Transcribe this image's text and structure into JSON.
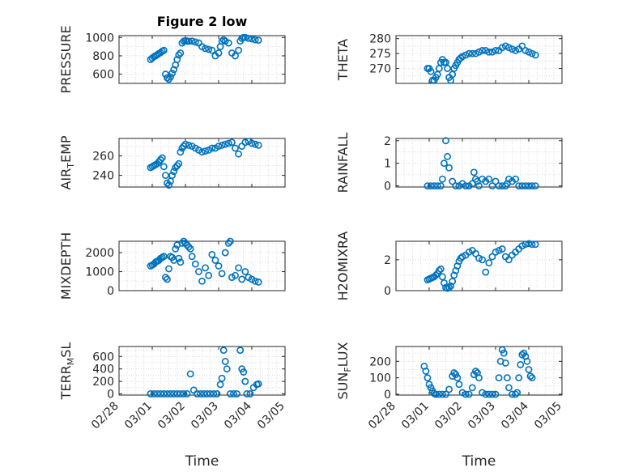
{
  "figure": {
    "title": "Figure 2 low",
    "xlabel": "Time",
    "marker_color": "#0072BD",
    "marker": "circle-open"
  },
  "chart_data": [
    {
      "type": "scatter",
      "title": "Figure 2 low",
      "ylabel": "PRESSURE",
      "ylim": [
        500,
        1020
      ],
      "yticks": [
        600,
        800,
        1000
      ],
      "xlim": [
        "02/28",
        "03/05"
      ],
      "xticks": [
        "02/28",
        "03/01",
        "03/02",
        "03/03",
        "03/04",
        "03/05"
      ],
      "show_xticklabels": false,
      "grid": true,
      "x": [
        0.95,
        1.0,
        1.05,
        1.1,
        1.15,
        1.2,
        1.25,
        1.3,
        1.35,
        1.4,
        1.45,
        1.5,
        1.55,
        1.6,
        1.65,
        1.7,
        1.75,
        1.8,
        1.85,
        1.9,
        1.95,
        2.0,
        2.05,
        2.1,
        2.2,
        2.3,
        2.4,
        2.5,
        2.6,
        2.7,
        2.8,
        2.9,
        3.0,
        3.05,
        3.1,
        3.15,
        3.2,
        3.3,
        3.4,
        3.5,
        3.6,
        3.65,
        3.7,
        3.75,
        3.8,
        3.9,
        4.0,
        4.1,
        4.2
      ],
      "y": [
        760,
        775,
        790,
        800,
        812,
        825,
        835,
        850,
        860,
        600,
        560,
        545,
        570,
        610,
        650,
        700,
        760,
        810,
        830,
        940,
        960,
        965,
        960,
        958,
        960,
        950,
        940,
        900,
        880,
        870,
        860,
        800,
        830,
        900,
        960,
        975,
        960,
        940,
        830,
        800,
        860,
        960,
        990,
        1000,
        1000,
        990,
        985,
        975,
        970
      ]
    },
    {
      "type": "scatter",
      "title": "",
      "ylabel": "THETA",
      "ylim": [
        265,
        281
      ],
      "yticks": [
        270,
        275,
        280
      ],
      "xlim": [
        "02/28",
        "03/05"
      ],
      "xticks": [
        "02/28",
        "03/01",
        "03/02",
        "03/03",
        "03/04",
        "03/05"
      ],
      "show_xticklabels": false,
      "grid": true,
      "x": [
        0.95,
        1.0,
        1.05,
        1.1,
        1.15,
        1.2,
        1.25,
        1.3,
        1.35,
        1.4,
        1.45,
        1.5,
        1.55,
        1.6,
        1.65,
        1.7,
        1.75,
        1.8,
        1.85,
        1.9,
        1.95,
        2.0,
        2.1,
        2.2,
        2.3,
        2.4,
        2.5,
        2.6,
        2.7,
        2.8,
        2.9,
        3.0,
        3.1,
        3.2,
        3.3,
        3.4,
        3.5,
        3.6,
        3.7,
        3.8,
        3.9,
        4.0,
        4.1,
        4.2
      ],
      "y": [
        270,
        270,
        269,
        266,
        266,
        267,
        268,
        270,
        272,
        273,
        272,
        272,
        270,
        267,
        266,
        268,
        270,
        271,
        272,
        273,
        273.5,
        274,
        274.5,
        275,
        275,
        275,
        275.5,
        276,
        276,
        275.5,
        275.5,
        276,
        276,
        277,
        277.5,
        277,
        276.5,
        276,
        276.5,
        277.5,
        276,
        275.5,
        275,
        274.5
      ]
    },
    {
      "type": "scatter",
      "title": "",
      "ylabel": "AIR_TEMP",
      "ylim": [
        228,
        278
      ],
      "yticks": [
        240,
        260
      ],
      "xlim": [
        "02/28",
        "03/05"
      ],
      "xticks": [
        "02/28",
        "03/01",
        "03/02",
        "03/03",
        "03/04",
        "03/05"
      ],
      "show_xticklabels": false,
      "grid": true,
      "x": [
        0.95,
        1.0,
        1.05,
        1.1,
        1.15,
        1.2,
        1.25,
        1.3,
        1.35,
        1.4,
        1.45,
        1.5,
        1.55,
        1.6,
        1.65,
        1.7,
        1.75,
        1.8,
        1.85,
        1.9,
        1.95,
        2.0,
        2.1,
        2.2,
        2.3,
        2.4,
        2.5,
        2.6,
        2.7,
        2.8,
        2.9,
        3.0,
        3.1,
        3.2,
        3.3,
        3.4,
        3.5,
        3.6,
        3.7,
        3.8,
        3.9,
        4.0,
        4.1,
        4.2
      ],
      "y": [
        248,
        249,
        250,
        251,
        252,
        254,
        256,
        258,
        249,
        240,
        232,
        230,
        234,
        240,
        244,
        248,
        250,
        252,
        264,
        268,
        270,
        272,
        271,
        270,
        268,
        266,
        264,
        265,
        266,
        268,
        268,
        270,
        271,
        272,
        273,
        274,
        268,
        262,
        270,
        274,
        275,
        273,
        272,
        271
      ]
    },
    {
      "type": "scatter",
      "title": "",
      "ylabel": "RAINFALL",
      "ylim": [
        -0.05,
        2.1
      ],
      "yticks": [
        0,
        1,
        2
      ],
      "xlim": [
        "02/28",
        "03/05"
      ],
      "xticks": [
        "02/28",
        "03/01",
        "03/02",
        "03/03",
        "03/04",
        "03/05"
      ],
      "show_xticklabels": false,
      "grid": true,
      "x": [
        0.95,
        1.05,
        1.15,
        1.25,
        1.35,
        1.4,
        1.45,
        1.5,
        1.55,
        1.6,
        1.7,
        1.8,
        1.9,
        2.0,
        2.1,
        2.2,
        2.3,
        2.35,
        2.4,
        2.45,
        2.5,
        2.6,
        2.7,
        2.8,
        2.9,
        3.0,
        3.1,
        3.2,
        3.3,
        3.35,
        3.4,
        3.5,
        3.6,
        3.7,
        3.8,
        3.9,
        4.0,
        4.1,
        4.2
      ],
      "y": [
        0,
        0,
        0,
        0,
        0,
        0.3,
        1.0,
        2.0,
        1.3,
        0.8,
        0.2,
        0,
        0,
        0.1,
        0,
        0,
        0.1,
        0.6,
        0.3,
        0.2,
        0,
        0.3,
        0.2,
        0.3,
        0,
        0.2,
        0,
        0,
        0,
        0.1,
        0.3,
        0.2,
        0.3,
        0,
        0,
        0,
        0,
        0,
        0
      ]
    },
    {
      "type": "scatter",
      "title": "",
      "ylabel": "MIXDEPTH",
      "ylim": [
        0,
        2600
      ],
      "yticks": [
        0,
        1000,
        2000
      ],
      "xlim": [
        "02/28",
        "03/05"
      ],
      "xticks": [
        "02/28",
        "03/01",
        "03/02",
        "03/03",
        "03/04",
        "03/05"
      ],
      "show_xticklabels": false,
      "grid": true,
      "x": [
        0.95,
        1.0,
        1.05,
        1.1,
        1.15,
        1.2,
        1.25,
        1.3,
        1.35,
        1.4,
        1.45,
        1.5,
        1.55,
        1.6,
        1.65,
        1.7,
        1.75,
        1.8,
        1.85,
        1.9,
        1.95,
        2.0,
        2.05,
        2.1,
        2.15,
        2.2,
        2.3,
        2.4,
        2.5,
        2.6,
        2.7,
        2.8,
        2.9,
        3.0,
        3.1,
        3.2,
        3.3,
        3.35,
        3.4,
        3.5,
        3.6,
        3.7,
        3.8,
        3.9,
        4.0,
        4.1,
        4.2
      ],
      "y": [
        1300,
        1350,
        1400,
        1500,
        1550,
        1600,
        1700,
        1750,
        1800,
        700,
        600,
        1150,
        1800,
        1750,
        1600,
        2200,
        2400,
        1700,
        1500,
        2500,
        2600,
        2500,
        2400,
        2300,
        2200,
        1800,
        1400,
        1000,
        500,
        1200,
        800,
        1900,
        1600,
        1300,
        900,
        2000,
        2500,
        2600,
        700,
        800,
        1200,
        600,
        1000,
        700,
        600,
        500,
        450
      ]
    },
    {
      "type": "scatter",
      "title": "",
      "ylabel": "H2OMIXRA",
      "ylim": [
        0,
        3.2
      ],
      "yticks": [
        0,
        2
      ],
      "xlim": [
        "02/28",
        "03/05"
      ],
      "xticks": [
        "02/28",
        "03/01",
        "03/02",
        "03/03",
        "03/04",
        "03/05"
      ],
      "show_xticklabels": false,
      "grid": true,
      "x": [
        0.95,
        1.0,
        1.05,
        1.1,
        1.15,
        1.2,
        1.25,
        1.3,
        1.35,
        1.4,
        1.45,
        1.5,
        1.55,
        1.6,
        1.65,
        1.7,
        1.75,
        1.8,
        1.85,
        1.9,
        1.95,
        2.0,
        2.1,
        2.2,
        2.3,
        2.4,
        2.5,
        2.6,
        2.7,
        2.8,
        2.9,
        3.0,
        3.1,
        3.2,
        3.3,
        3.4,
        3.5,
        3.6,
        3.7,
        3.8,
        3.9,
        4.0,
        4.1,
        4.2
      ],
      "y": [
        0.7,
        0.75,
        0.8,
        0.85,
        0.9,
        1.0,
        1.1,
        1.3,
        1.4,
        0.9,
        0.5,
        0.2,
        0.15,
        0.2,
        0.3,
        0.6,
        1.0,
        1.3,
        1.6,
        1.9,
        2.1,
        2.2,
        2.3,
        2.5,
        2.6,
        2.4,
        2.1,
        2.0,
        1.2,
        1.8,
        2.2,
        2.5,
        2.6,
        2.7,
        2.2,
        2.0,
        2.3,
        2.5,
        2.7,
        2.9,
        3.0,
        3.05,
        3.0,
        3.0
      ]
    },
    {
      "type": "scatter",
      "title": "",
      "ylabel": "TERR_MSL",
      "ylim": [
        -20,
        760
      ],
      "yticks": [
        0,
        200,
        400,
        600
      ],
      "xlim": [
        "02/28",
        "03/05"
      ],
      "xticks": [
        "02/28",
        "03/01",
        "03/02",
        "03/03",
        "03/04",
        "03/05"
      ],
      "show_xticklabels": true,
      "grid": true,
      "x": [
        0.95,
        1.05,
        1.15,
        1.25,
        1.35,
        1.45,
        1.55,
        1.65,
        1.75,
        1.85,
        1.95,
        2.05,
        2.15,
        2.25,
        2.35,
        2.45,
        2.55,
        2.65,
        2.75,
        2.85,
        2.95,
        3.05,
        3.1,
        3.15,
        3.2,
        3.25,
        3.35,
        3.45,
        3.55,
        3.65,
        3.7,
        3.75,
        3.8,
        3.85,
        3.95,
        4.05,
        4.15,
        4.2
      ],
      "y": [
        0,
        0,
        0,
        0,
        0,
        0,
        0,
        0,
        0,
        0,
        0,
        0,
        320,
        60,
        0,
        0,
        0,
        0,
        0,
        0,
        0,
        150,
        250,
        700,
        520,
        400,
        0,
        0,
        0,
        700,
        400,
        350,
        200,
        0,
        0,
        100,
        150,
        160
      ]
    },
    {
      "type": "scatter",
      "title": "",
      "ylabel": "SUN_FLUX",
      "ylim": [
        -5,
        290
      ],
      "yticks": [
        0,
        100,
        200
      ],
      "xlim": [
        "02/28",
        "03/05"
      ],
      "xticks": [
        "02/28",
        "03/01",
        "03/02",
        "03/03",
        "03/04",
        "03/05"
      ],
      "show_xticklabels": true,
      "grid": true,
      "x": [
        0.85,
        0.9,
        0.95,
        1.0,
        1.05,
        1.1,
        1.15,
        1.2,
        1.3,
        1.4,
        1.5,
        1.6,
        1.7,
        1.75,
        1.8,
        1.85,
        1.9,
        2.0,
        2.1,
        2.2,
        2.3,
        2.35,
        2.4,
        2.45,
        2.5,
        2.6,
        2.7,
        2.8,
        2.9,
        3.0,
        3.1,
        3.15,
        3.2,
        3.25,
        3.3,
        3.35,
        3.4,
        3.5,
        3.6,
        3.65,
        3.7,
        3.75,
        3.8,
        3.85,
        3.9,
        3.95,
        4.0,
        4.05,
        4.1
      ],
      "y": [
        170,
        140,
        100,
        60,
        40,
        20,
        5,
        0,
        0,
        0,
        0,
        30,
        110,
        130,
        120,
        100,
        60,
        10,
        0,
        0,
        40,
        120,
        140,
        130,
        100,
        10,
        0,
        0,
        0,
        0,
        100,
        200,
        270,
        250,
        190,
        100,
        40,
        0,
        0,
        10,
        100,
        180,
        240,
        250,
        230,
        200,
        150,
        110,
        100
      ]
    }
  ]
}
